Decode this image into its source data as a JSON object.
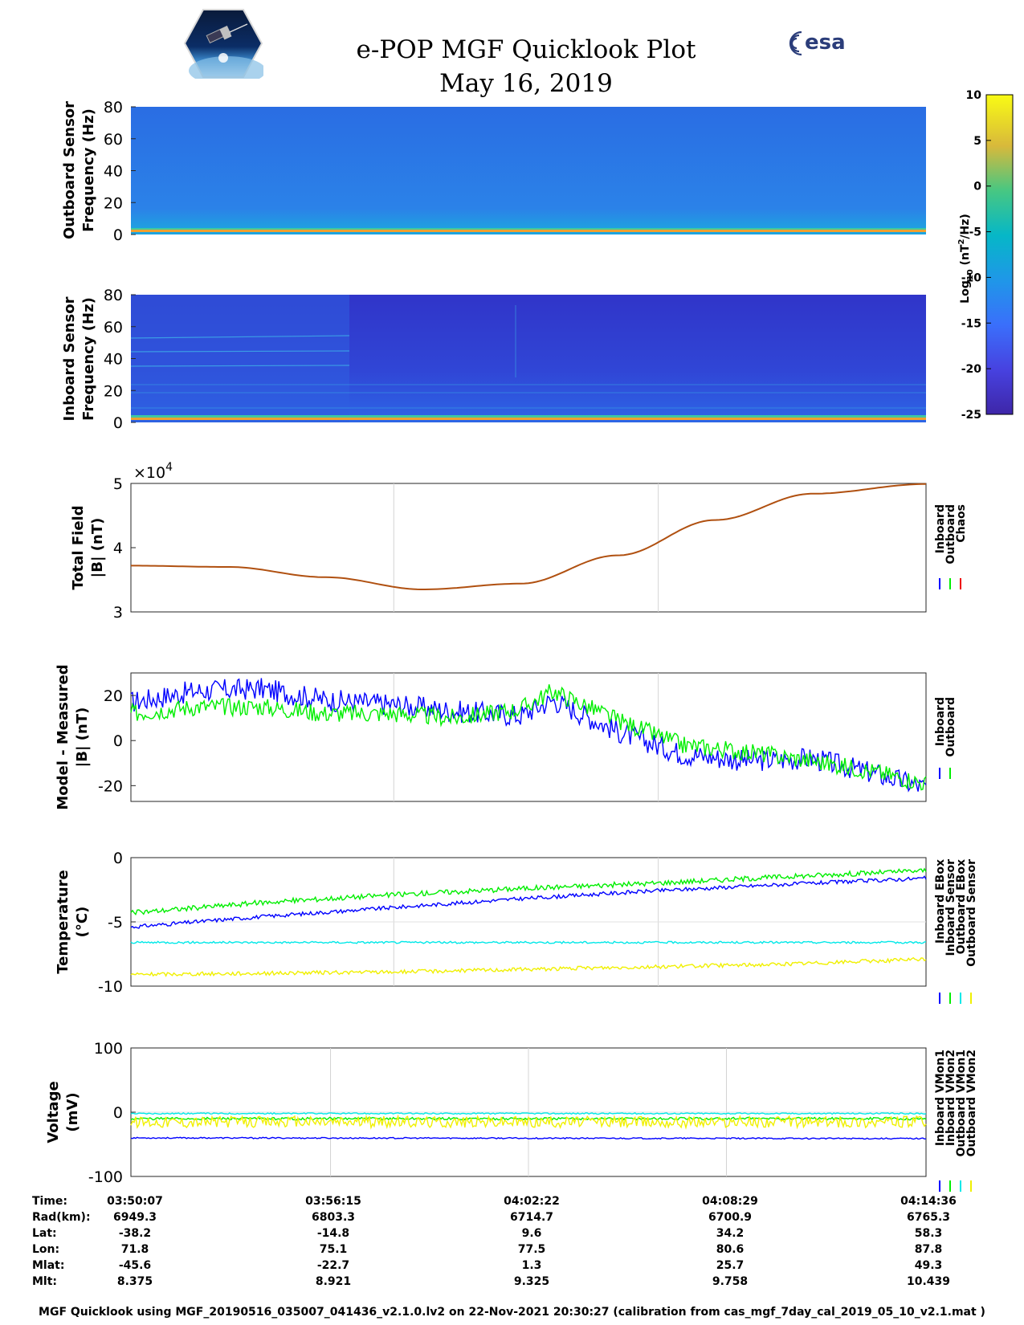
{
  "header": {
    "title": "e-POP MGF Quicklook Plot",
    "date": "May 16, 2019",
    "esa_logo_text": "esa",
    "mission_logo_icon": "cassiope-satellite-logo",
    "esa_logo_icon": "esa-logo"
  },
  "colors": {
    "inboard": "#0000ff",
    "outboard": "#00ee00",
    "chaos": "#ee0000",
    "cyan": "#00e8e8",
    "yellow": "#f0f000",
    "total_field_line": "#b05010",
    "spectrogram_bg_outboard": "#2a72e6",
    "spectrogram_bg_inboard": "#2c3fcf"
  },
  "chart_data": [
    {
      "type": "heatmap",
      "ylabel": "Outboard Sensor Frequency (Hz)",
      "ylabel_lines": [
        "Outboard Sensor",
        "Frequency (Hz)"
      ],
      "ylim": [
        0,
        80
      ],
      "yticks": [
        "0",
        "20",
        "40",
        "60",
        "80"
      ],
      "colorbar": {
        "label": "Log10 (nT^2/Hz)",
        "label_base": "Log",
        "label_sub": "10",
        "label_unit_pre": " (nT",
        "label_sup": "2",
        "label_unit_post": "/Hz)",
        "range": [
          -25,
          10
        ],
        "ticks": [
          "10",
          "5",
          "0",
          "-5",
          "-10",
          "-15",
          "-20",
          "-25"
        ]
      }
    },
    {
      "type": "heatmap",
      "ylabel": "Inboard Sensor Frequency (Hz)",
      "ylabel_lines": [
        "Inboard Sensor",
        "Frequency (Hz)"
      ],
      "ylim": [
        0,
        80
      ],
      "yticks": [
        "0",
        "20",
        "40",
        "60",
        "80"
      ]
    },
    {
      "type": "line",
      "ylabel": "Total Field |B| (nT)",
      "ylabel_lines": [
        "Total Field",
        "|B| (nT)"
      ],
      "ylim": [
        30000,
        50000
      ],
      "yticks": [
        "3",
        "4",
        "5"
      ],
      "exponent_base": "×10",
      "exponent_power": "4",
      "legend": [
        "Inboard",
        "Outboard",
        "Chaos"
      ],
      "x_minutes": [
        0,
        3,
        6,
        9,
        12,
        15,
        18,
        21,
        24.5
      ],
      "series_model_nT": [
        37200,
        37000,
        35400,
        33500,
        34400,
        38800,
        44300,
        48400,
        49900
      ]
    },
    {
      "type": "line",
      "ylabel": "Model - Measured |B| (nT)",
      "ylabel_lines": [
        "Model - Measured",
        "|B| (nT)"
      ],
      "ylim": [
        -27,
        30
      ],
      "yticks": [
        "-20",
        "0",
        "20"
      ],
      "legend": [
        "Inboard",
        "Outboard"
      ],
      "x_minutes": [
        0,
        2,
        4,
        6,
        8,
        10,
        12,
        13,
        15,
        17,
        19,
        21,
        23,
        24.5
      ],
      "series": [
        {
          "name": "Inboard",
          "values": [
            17,
            22,
            23,
            18,
            16,
            13,
            11,
            18,
            4,
            -6,
            -9,
            -8,
            -15,
            -21
          ]
        },
        {
          "name": "Outboard",
          "values": [
            12,
            15,
            15,
            12,
            12,
            10,
            14,
            22,
            9,
            -2,
            -5,
            -9,
            -14,
            -19
          ]
        }
      ]
    },
    {
      "type": "line",
      "ylabel": "Temperature (°C)",
      "ylabel_lines": [
        "Temperature",
        "(°C)"
      ],
      "ylim": [
        -10,
        0
      ],
      "yticks": [
        "-10",
        "-5",
        "0"
      ],
      "legend": [
        "Inboard EBox",
        "Inboard Sensor",
        "Outboard EBox",
        "Outboard Sensor"
      ],
      "x_minutes": [
        0,
        4,
        8,
        12,
        16,
        20,
        24.5
      ],
      "series": [
        {
          "name": "Inboard EBox",
          "values": [
            -5.4,
            -4.6,
            -3.9,
            -3.2,
            -2.6,
            -2.1,
            -1.6
          ]
        },
        {
          "name": "Inboard Sensor",
          "values": [
            -4.3,
            -3.5,
            -2.9,
            -2.4,
            -2.0,
            -1.5,
            -1.0
          ]
        },
        {
          "name": "Outboard EBox",
          "values": [
            -6.6,
            -6.6,
            -6.6,
            -6.6,
            -6.6,
            -6.6,
            -6.6
          ]
        },
        {
          "name": "Outboard Sensor",
          "values": [
            -9.1,
            -9.0,
            -8.9,
            -8.7,
            -8.5,
            -8.3,
            -7.9
          ]
        }
      ]
    },
    {
      "type": "line",
      "ylabel": "Voltage (mV)",
      "ylabel_lines": [
        "Voltage",
        "(mV)"
      ],
      "ylim": [
        -100,
        100
      ],
      "yticks": [
        "-100",
        "0",
        "100"
      ],
      "legend": [
        "Inboard VMon1",
        "Inboard VMon2",
        "Outboard VMon1",
        "Outboard VMon2"
      ],
      "x_minutes": [
        0,
        24.5
      ],
      "series": [
        {
          "name": "Inboard VMon1",
          "values": [
            -40,
            -41
          ]
        },
        {
          "name": "Inboard VMon2",
          "values": [
            -10,
            -10
          ]
        },
        {
          "name": "Outboard VMon1",
          "values": [
            -2,
            -2
          ]
        },
        {
          "name": "Outboard VMon2",
          "values": [
            -15,
            -15
          ]
        }
      ]
    }
  ],
  "table": {
    "row_labels": [
      "Time:",
      "Rad(km):",
      "Lat:",
      "Lon:",
      "Mlat:",
      "Mlt:"
    ],
    "columns": [
      [
        "03:50:07",
        "6949.3",
        "-38.2",
        "71.8",
        "-45.6",
        "8.375"
      ],
      [
        "03:56:15",
        "6803.3",
        "-14.8",
        "75.1",
        "-22.7",
        "8.921"
      ],
      [
        "04:02:22",
        "6714.7",
        "9.6",
        "77.5",
        "1.3",
        "9.325"
      ],
      [
        "04:08:29",
        "6700.9",
        "34.2",
        "80.6",
        "25.7",
        "9.758"
      ],
      [
        "04:14:36",
        "6765.3",
        "58.3",
        "87.8",
        "49.3",
        "10.439"
      ]
    ]
  },
  "footer": "MGF Quicklook using MGF_20190516_035007_041436_v2.1.0.lv2 on 22-Nov-2021 20:30:27 (calibration from cas_mgf_7day_cal_2019_05_10_v2.1.mat )"
}
